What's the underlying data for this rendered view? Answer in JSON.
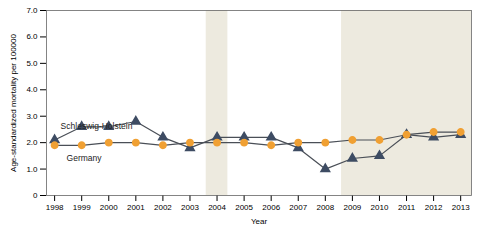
{
  "chart_data": {
    "type": "line",
    "x_label": "Year",
    "y_label": "Age-standardized mortality per 100000",
    "x": [
      1998,
      1999,
      2000,
      2001,
      2002,
      2003,
      2004,
      2005,
      2006,
      2007,
      2008,
      2009,
      2010,
      2011,
      2012,
      2013
    ],
    "series": [
      {
        "name": "Schleswig-Holstein",
        "color": "#3e4c63",
        "marker": "triangle",
        "values": [
          2.1,
          2.6,
          2.6,
          2.8,
          2.2,
          1.8,
          2.2,
          2.2,
          2.2,
          1.8,
          1.0,
          1.4,
          1.5,
          2.3,
          2.2,
          2.3
        ]
      },
      {
        "name": "Germany",
        "color": "#f0a033",
        "marker": "circle",
        "values": [
          1.9,
          1.9,
          2.0,
          2.0,
          1.9,
          2.0,
          2.0,
          2.0,
          1.9,
          2.0,
          2.0,
          2.1,
          2.1,
          2.3,
          2.4,
          2.4
        ]
      }
    ],
    "shaded_ranges": [
      [
        2003.6,
        2004.4
      ],
      [
        2008.6,
        2013.4
      ]
    ],
    "xlim": [
      1997.7,
      2013.4
    ],
    "xticks": [
      1998,
      1999,
      2000,
      2001,
      2002,
      2003,
      2004,
      2005,
      2006,
      2007,
      2008,
      2009,
      2010,
      2011,
      2012,
      2013
    ],
    "ylim": [
      0,
      7
    ],
    "yticks": [
      0,
      {
        "value": 1,
        "label": "1.0"
      },
      {
        "value": 2,
        "label": "2.0"
      },
      {
        "value": 3,
        "label": "3.0"
      },
      {
        "value": 4,
        "label": "4.0"
      },
      {
        "value": 5,
        "label": "5.0"
      },
      {
        "value": 6,
        "label": "6.0"
      },
      {
        "value": 7,
        "label": "7.0"
      }
    ],
    "grid": false
  }
}
